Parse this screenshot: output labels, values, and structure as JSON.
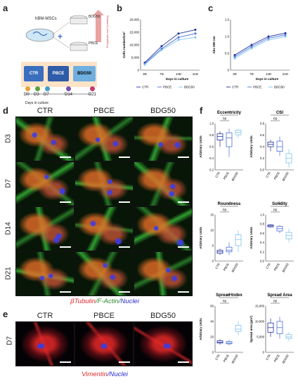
{
  "panels": {
    "a": "a",
    "b": "b",
    "c": "c",
    "d": "d",
    "e": "e",
    "f": "f"
  },
  "schematic": {
    "cells_label": "hBM-MSCs",
    "bdg_label": "BDG50",
    "pbce_label": "PBCE",
    "gradient_label": "Ectopitopic and Cumming",
    "conditions": [
      "CTR",
      "PBCE",
      "BDG50"
    ],
    "timeline": [
      "D0",
      "D3",
      "D7",
      "D14",
      "D21"
    ],
    "timeline_caption": "Days in culture",
    "timeline_colors": [
      "#e8a13a",
      "#5aa03c",
      "#3aa0d0",
      "#7a4fb0",
      "#c43c6a"
    ]
  },
  "micro_headers": [
    "CTR",
    "PBCE",
    "BDG50"
  ],
  "micro_rows": [
    "D3",
    "D7",
    "D14",
    "D21"
  ],
  "micro_caption_d": {
    "p1": "βTubulin",
    "p2": "/F-Actin/",
    "p3": "Nuclei"
  },
  "micro_caption_e": {
    "p1": "Vimentin",
    "p2": "/Nuclei"
  },
  "e_row": "D7",
  "colors": {
    "ctr": "#1f2f9c",
    "pbce": "#4a6fd8",
    "bdg": "#7ec3ea",
    "red": "#e02a2a",
    "green": "#2a8a2a",
    "blue": "#2a2ad0"
  },
  "chart_data": [
    {
      "id": "b",
      "type": "line",
      "xlabel": "Days in culture",
      "ylabel": "Cells number/cm²",
      "categories": [
        "3D",
        "7D",
        "14D",
        "21D"
      ],
      "ylim": [
        0,
        20000
      ],
      "yticks": [
        "0",
        "5,000",
        "10,000",
        "15,000",
        "20,000"
      ],
      "series": [
        {
          "name": "CTR",
          "values": [
            3000,
            9500,
            14500,
            16000
          ]
        },
        {
          "name": "PBCE",
          "values": [
            2600,
            8500,
            13000,
            14500
          ]
        },
        {
          "name": "BDG50",
          "values": [
            2200,
            8000,
            12000,
            13000
          ]
        }
      ]
    },
    {
      "id": "c",
      "type": "line",
      "xlabel": "Days in culture",
      "ylabel": "Abs 590 nm",
      "categories": [
        "3D",
        "7D",
        "14D",
        "21D"
      ],
      "ylim": [
        0,
        1.5
      ],
      "yticks": [
        "0",
        "0.5",
        "1.0",
        "1.5"
      ],
      "series": [
        {
          "name": "CTR",
          "values": [
            0.45,
            0.75,
            1.0,
            1.1
          ]
        },
        {
          "name": "PBCE",
          "values": [
            0.4,
            0.7,
            0.95,
            1.05
          ]
        },
        {
          "name": "BDG50",
          "values": [
            0.35,
            0.65,
            0.9,
            1.0
          ]
        }
      ]
    },
    {
      "id": "f1",
      "type": "box",
      "title": "Eccentricity",
      "ylabel": "Arbitrary Units",
      "categories": [
        "CTR",
        "PBCE",
        "BDG50"
      ],
      "ylim": [
        0.2,
        1.1
      ],
      "yticks": [
        "0.2",
        "0.4",
        "0.6",
        "0.8",
        "1.0"
      ],
      "boxes": [
        [
          0.65,
          0.78,
          0.85,
          0.9,
          0.95
        ],
        [
          0.45,
          0.65,
          0.82,
          0.92,
          1.0
        ],
        [
          0.82,
          0.88,
          0.93,
          0.97,
          1.0
        ]
      ],
      "sig": [
        {
          "a": 0,
          "b": 1,
          "label": "ns"
        },
        {
          "a": 0,
          "b": 2,
          "label": "*"
        }
      ]
    },
    {
      "id": "f2",
      "type": "box",
      "title": "CSI",
      "ylabel": "Arbitrary Units",
      "categories": [
        "CTR",
        "PBCE",
        "BDG50"
      ],
      "ylim": [
        0,
        1.0
      ],
      "yticks": [
        "0.0",
        "0.2",
        "0.4",
        "0.6",
        "0.8"
      ],
      "boxes": [
        [
          0.4,
          0.5,
          0.55,
          0.6,
          0.65
        ],
        [
          0.3,
          0.4,
          0.5,
          0.62,
          0.72
        ],
        [
          0.05,
          0.15,
          0.25,
          0.35,
          0.45
        ]
      ],
      "sig": [
        {
          "a": 0,
          "b": 1,
          "label": "ns"
        },
        {
          "a": 0,
          "b": 2,
          "label": "*"
        }
      ]
    },
    {
      "id": "f3",
      "type": "box",
      "title": "Roundness",
      "ylabel": "Arbitrary Units",
      "categories": [
        "CTR",
        "PBCE",
        "BDG50"
      ],
      "ylim": [
        0,
        15
      ],
      "yticks": [
        "0",
        "5",
        "10",
        "15"
      ],
      "boxes": [
        [
          2,
          2.5,
          3,
          3.5,
          4
        ],
        [
          2,
          3,
          3.5,
          4.5,
          6
        ],
        [
          3,
          5,
          7,
          8.5,
          10
        ]
      ],
      "sig": [
        {
          "a": 0,
          "b": 1,
          "label": "ns"
        },
        {
          "a": 0,
          "b": 2,
          "label": "*"
        }
      ]
    },
    {
      "id": "f4",
      "type": "box",
      "title": "Solidity",
      "ylabel": "Arbitrary Units",
      "categories": [
        "CTR",
        "PBCE",
        "BDG50"
      ],
      "ylim": [
        0,
        1.0
      ],
      "yticks": [
        "0.0",
        "0.2",
        "0.4",
        "0.6",
        "0.8",
        "1.0"
      ],
      "boxes": [
        [
          0.72,
          0.74,
          0.76,
          0.78,
          0.8
        ],
        [
          0.6,
          0.65,
          0.7,
          0.75,
          0.78
        ],
        [
          0.4,
          0.48,
          0.55,
          0.62,
          0.7
        ]
      ],
      "sig": [
        {
          "a": 0,
          "b": 1,
          "label": "ns"
        },
        {
          "a": 0,
          "b": 2,
          "label": "**"
        }
      ]
    },
    {
      "id": "f5",
      "type": "box",
      "title": "Spread Index",
      "ylabel": "Arbitrary Units",
      "categories": [
        "CTR",
        "PBCE",
        "BDG50"
      ],
      "ylim": [
        0,
        60
      ],
      "yticks": [
        "0",
        "20",
        "40",
        "60"
      ],
      "boxes": [
        [
          10,
          12,
          13,
          15,
          17
        ],
        [
          9,
          11,
          12,
          14,
          16
        ],
        [
          22,
          27,
          30,
          35,
          40
        ]
      ],
      "sig": [
        {
          "a": 0,
          "b": 1,
          "label": "ns"
        },
        {
          "a": 0,
          "b": 2,
          "label": "****"
        }
      ]
    },
    {
      "id": "f6",
      "type": "box",
      "title": "Spread Area",
      "ylabel": "Spread area (µm²)",
      "categories": [
        "CTR",
        "PBCE",
        "BDG50"
      ],
      "ylim": [
        0,
        15000
      ],
      "yticks": [
        "0",
        "5,000",
        "10,000",
        "15,000"
      ],
      "boxes": [
        [
          5000,
          6500,
          8000,
          9500,
          11000
        ],
        [
          4500,
          6000,
          8000,
          10000,
          11500
        ],
        [
          3500,
          4500,
          5000,
          5800,
          6500
        ]
      ],
      "sig": [
        {
          "a": 0,
          "b": 1,
          "label": "ns"
        },
        {
          "a": 0,
          "b": 2,
          "label": "*"
        }
      ]
    }
  ]
}
